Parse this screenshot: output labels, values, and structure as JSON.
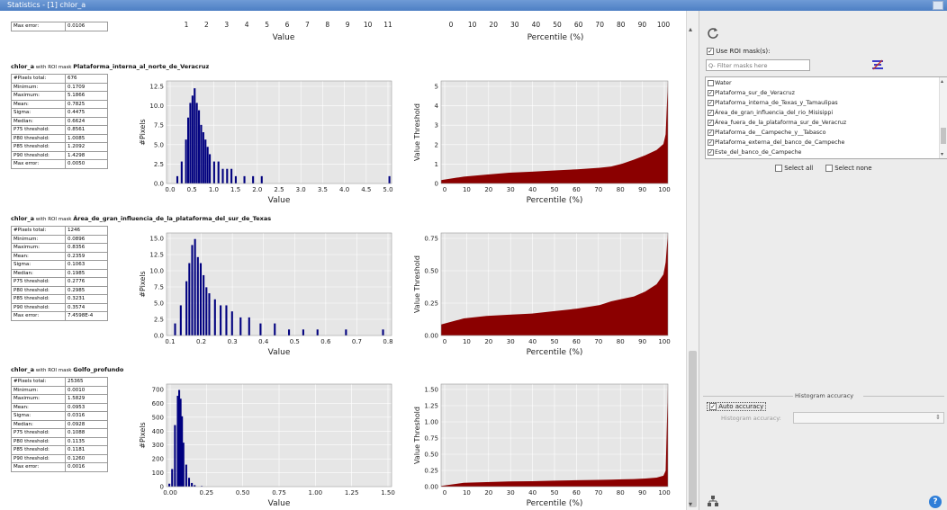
{
  "window": {
    "title": "Statistics - [1] chlor_a"
  },
  "top_section": {
    "stats": [
      {
        "label": "Max error:",
        "value": "0.0106"
      }
    ],
    "hist_xticks": [
      "1",
      "2",
      "3",
      "4",
      "5",
      "6",
      "7",
      "8",
      "9",
      "10",
      "11"
    ],
    "hist_xlabel": "Value",
    "perc_xticks": [
      "0",
      "10",
      "20",
      "30",
      "40",
      "50",
      "60",
      "70",
      "80",
      "90",
      "100"
    ],
    "perc_xlabel": "Percentile (%)"
  },
  "sections": [
    {
      "band": "chlor_a",
      "with_text": "with ROI mask",
      "mask": "Plataforma_interna_al_norte_de_Veracruz",
      "stats": [
        {
          "label": "#Pixels total:",
          "value": "676"
        },
        {
          "label": "Minimum:",
          "value": "0.1709"
        },
        {
          "label": "Maximum:",
          "value": "5.1866"
        },
        {
          "label": "Mean:",
          "value": "0.7825"
        },
        {
          "label": "Sigma:",
          "value": "0.4475"
        },
        {
          "label": "Median:",
          "value": "0.6624"
        },
        {
          "label": "P75 threshold:",
          "value": "0.8561"
        },
        {
          "label": "P80 threshold:",
          "value": "1.0085"
        },
        {
          "label": "P85 threshold:",
          "value": "1.2092"
        },
        {
          "label": "P90 threshold:",
          "value": "1.4298"
        },
        {
          "label": "Max error:",
          "value": "0.0050"
        }
      ],
      "hist_yticks": [
        "0.0",
        "2.5",
        "5.0",
        "7.5",
        "10.0",
        "12.5"
      ],
      "hist_xticks": [
        "0.0",
        "0.5",
        "1.0",
        "1.5",
        "2.0",
        "2.5",
        "3.0",
        "3.5",
        "4.0",
        "4.5",
        "5.0"
      ],
      "hist_ylabel": "#Pixels",
      "hist_xlabel": "Value",
      "perc_yticks": [
        "0",
        "1",
        "2",
        "3",
        "4",
        "5"
      ],
      "perc_xticks": [
        "0",
        "10",
        "20",
        "30",
        "40",
        "50",
        "60",
        "70",
        "80",
        "90",
        "100"
      ],
      "perc_ylabel": "Value Threshold",
      "perc_xlabel": "Percentile (%)"
    },
    {
      "band": "chlor_a",
      "with_text": "with ROI mask",
      "mask": "Área_de_gran_influencia_de_la_plataforma_del_sur_de_Texas",
      "stats": [
        {
          "label": "#Pixels total:",
          "value": "1246"
        },
        {
          "label": "Minimum:",
          "value": "0.0896"
        },
        {
          "label": "Maximum:",
          "value": "0.8356"
        },
        {
          "label": "Mean:",
          "value": "0.2359"
        },
        {
          "label": "Sigma:",
          "value": "0.1063"
        },
        {
          "label": "Median:",
          "value": "0.1985"
        },
        {
          "label": "P75 threshold:",
          "value": "0.2776"
        },
        {
          "label": "P80 threshold:",
          "value": "0.2985"
        },
        {
          "label": "P85 threshold:",
          "value": "0.3231"
        },
        {
          "label": "P90 threshold:",
          "value": "0.3574"
        },
        {
          "label": "Max error:",
          "value": "7.4598E-4"
        }
      ],
      "hist_yticks": [
        "0.0",
        "2.5",
        "5.0",
        "7.5",
        "10.0",
        "12.5",
        "15.0"
      ],
      "hist_xticks": [
        "0.1",
        "0.2",
        "0.3",
        "0.4",
        "0.5",
        "0.6",
        "0.7",
        "0.8"
      ],
      "hist_ylabel": "#Pixels",
      "hist_xlabel": "Value",
      "perc_yticks": [
        "0.00",
        "0.25",
        "0.50",
        "0.75"
      ],
      "perc_xticks": [
        "0",
        "10",
        "20",
        "30",
        "40",
        "50",
        "60",
        "70",
        "80",
        "90",
        "100"
      ],
      "perc_ylabel": "Value Threshold",
      "perc_xlabel": "Percentile (%)"
    },
    {
      "band": "chlor_a",
      "with_text": "with ROI mask",
      "mask": "Golfo_profundo",
      "stats": [
        {
          "label": "#Pixels total:",
          "value": "25365"
        },
        {
          "label": "Minimum:",
          "value": "0.0010"
        },
        {
          "label": "Maximum:",
          "value": "1.5829"
        },
        {
          "label": "Mean:",
          "value": "0.0953"
        },
        {
          "label": "Sigma:",
          "value": "0.0316"
        },
        {
          "label": "Median:",
          "value": "0.0928"
        },
        {
          "label": "P75 threshold:",
          "value": "0.1088"
        },
        {
          "label": "P80 threshold:",
          "value": "0.1135"
        },
        {
          "label": "P85 threshold:",
          "value": "0.1181"
        },
        {
          "label": "P90 threshold:",
          "value": "0.1260"
        },
        {
          "label": "Max error:",
          "value": "0.0016"
        }
      ],
      "hist_yticks": [
        "0",
        "100",
        "200",
        "300",
        "400",
        "500",
        "600",
        "700"
      ],
      "hist_xticks": [
        "0.00",
        "0.25",
        "0.50",
        "0.75",
        "1.00",
        "1.25",
        "1.50"
      ],
      "hist_ylabel": "#Pixels",
      "hist_xlabel": "Value",
      "perc_yticks": [
        "0.00",
        "0.25",
        "0.50",
        "0.75",
        "1.00",
        "1.25",
        "1.50"
      ],
      "perc_xticks": [
        "0",
        "10",
        "20",
        "30",
        "40",
        "50",
        "60",
        "70",
        "80",
        "90",
        "100"
      ],
      "perc_ylabel": "Value Threshold",
      "perc_xlabel": "Percentile (%)"
    }
  ],
  "chart_data": [
    {
      "type": "bar",
      "chart": "histogram",
      "mask": "Plataforma_interna_al_norte_de_Veracruz",
      "xlabel": "Value",
      "ylabel": "#Pixels",
      "xlim": [
        0,
        5.2
      ],
      "ylim": [
        0,
        14
      ],
      "color": "#00007f",
      "x": [
        0.25,
        0.35,
        0.45,
        0.5,
        0.55,
        0.6,
        0.65,
        0.7,
        0.75,
        0.8,
        0.85,
        0.9,
        0.95,
        1.0,
        1.1,
        1.2,
        1.3,
        1.4,
        1.5,
        1.6,
        1.8,
        2.0,
        2.2,
        5.15
      ],
      "values": [
        1,
        3,
        6,
        9,
        11,
        12,
        13,
        11,
        10,
        8,
        7,
        6,
        5,
        4,
        3,
        3,
        2,
        2,
        2,
        1,
        1,
        1,
        1,
        1
      ]
    },
    {
      "type": "area",
      "chart": "percentile",
      "mask": "Plataforma_interna_al_norte_de_Veracruz",
      "xlabel": "Percentile (%)",
      "ylabel": "Value Threshold",
      "xlim": [
        0,
        100
      ],
      "ylim": [
        0,
        5.2
      ],
      "color": "#8b0000",
      "x": [
        0,
        10,
        20,
        30,
        40,
        50,
        60,
        70,
        75,
        80,
        85,
        90,
        95,
        98,
        99,
        100
      ],
      "values": [
        0.17,
        0.35,
        0.45,
        0.55,
        0.6,
        0.66,
        0.72,
        0.8,
        0.86,
        1.01,
        1.21,
        1.43,
        1.7,
        2.0,
        2.5,
        5.19
      ]
    },
    {
      "type": "bar",
      "chart": "histogram",
      "mask": "Área_de_gran_influencia_de_la_plataforma_del_sur_de_Texas",
      "xlabel": "Value",
      "ylabel": "#Pixels",
      "xlim": [
        0.07,
        0.86
      ],
      "ylim": [
        0,
        17
      ],
      "color": "#00007f",
      "x": [
        0.1,
        0.12,
        0.14,
        0.15,
        0.16,
        0.17,
        0.18,
        0.19,
        0.2,
        0.21,
        0.22,
        0.24,
        0.26,
        0.28,
        0.3,
        0.33,
        0.36,
        0.4,
        0.45,
        0.5,
        0.55,
        0.6,
        0.7,
        0.83
      ],
      "values": [
        2,
        5,
        9,
        12,
        15,
        16,
        13,
        12,
        10,
        8,
        7,
        6,
        5,
        5,
        4,
        3,
        3,
        2,
        2,
        1,
        1,
        1,
        1,
        1
      ]
    },
    {
      "type": "area",
      "chart": "percentile",
      "mask": "Área_de_gran_influencia_de_la_plataforma_del_sur_de_Texas",
      "xlabel": "Percentile (%)",
      "ylabel": "Value Threshold",
      "xlim": [
        0,
        100
      ],
      "ylim": [
        0,
        0.84
      ],
      "color": "#8b0000",
      "x": [
        0,
        10,
        20,
        30,
        40,
        50,
        60,
        70,
        75,
        80,
        85,
        90,
        95,
        98,
        99,
        100
      ],
      "values": [
        0.09,
        0.14,
        0.16,
        0.17,
        0.18,
        0.2,
        0.22,
        0.25,
        0.28,
        0.3,
        0.32,
        0.36,
        0.42,
        0.5,
        0.6,
        0.84
      ]
    },
    {
      "type": "bar",
      "chart": "histogram",
      "mask": "Golfo_profundo",
      "xlabel": "Value",
      "ylabel": "#Pixels",
      "xlim": [
        0,
        1.6
      ],
      "ylim": [
        0,
        700
      ],
      "color": "#00007f",
      "x": [
        0.02,
        0.04,
        0.06,
        0.08,
        0.09,
        0.1,
        0.11,
        0.12,
        0.14,
        0.16,
        0.18,
        0.2,
        0.25
      ],
      "values": [
        20,
        120,
        420,
        620,
        660,
        600,
        480,
        300,
        150,
        60,
        25,
        10,
        4
      ]
    },
    {
      "type": "area",
      "chart": "percentile",
      "mask": "Golfo_profundo",
      "xlabel": "Percentile (%)",
      "ylabel": "Value Threshold",
      "xlim": [
        0,
        100
      ],
      "ylim": [
        0,
        1.6
      ],
      "color": "#8b0000",
      "x": [
        0,
        10,
        20,
        30,
        40,
        50,
        60,
        70,
        75,
        80,
        85,
        90,
        95,
        98,
        99,
        100
      ],
      "values": [
        0.01,
        0.06,
        0.07,
        0.08,
        0.085,
        0.093,
        0.1,
        0.105,
        0.109,
        0.114,
        0.118,
        0.126,
        0.14,
        0.17,
        0.25,
        1.58
      ]
    }
  ],
  "right_panel": {
    "refresh_icon": "refresh-icon",
    "use_roi_label": "Use ROI mask(s):",
    "use_roi_checked": true,
    "filter_placeholder": "Q- Filter masks here",
    "masks": [
      {
        "label": "Water",
        "checked": false
      },
      {
        "label": "Plataforma_sur_de_Veracruz",
        "checked": true
      },
      {
        "label": "Plataforma_interna_de_Texas_y_Tamaulipas",
        "checked": true
      },
      {
        "label": "Área_de_gran_influencia_del_rio_Misisippi",
        "checked": true
      },
      {
        "label": "Área_fuera_de_la_plataforma_sur_de_Veracruz",
        "checked": true
      },
      {
        "label": "Plataforma_de__Campeche_y__Tabasco",
        "checked": true
      },
      {
        "label": "Plataforma_externa_del_banco_de_Campeche",
        "checked": true
      },
      {
        "label": "Este_del_banco_de_Campeche",
        "checked": true
      }
    ],
    "select_all_label": "Select all",
    "select_none_label": "Select none",
    "accuracy_group_title": "Histogram accuracy",
    "auto_accuracy_label": "Auto accuracy",
    "auto_accuracy_checked": true,
    "histogram_accuracy_label": "Histogram accuracy:",
    "histogram_accuracy_value": "",
    "stepper_glyph": "⇕",
    "help_icon": "?"
  }
}
